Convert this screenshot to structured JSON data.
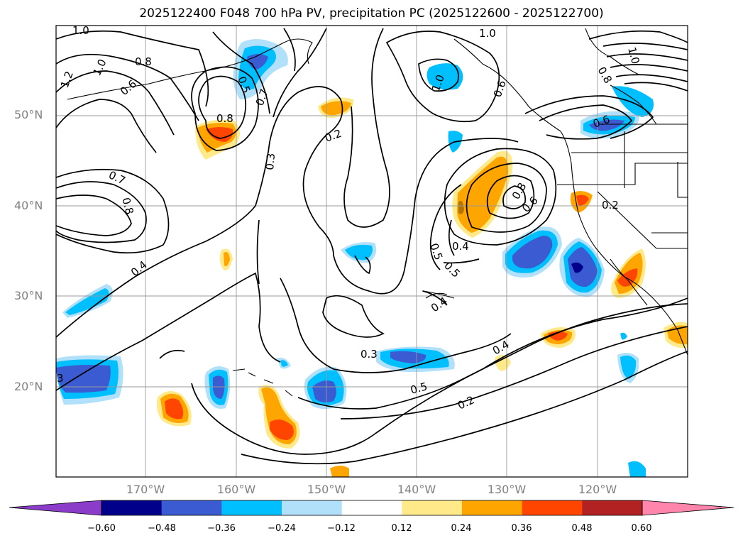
{
  "title": "2025122400 F048 700 hPa PV, precipitation PC (2025122600 - 2025122700)",
  "lat_labels": [
    "50°N",
    "40°N",
    "30°N",
    "20°N"
  ],
  "lon_labels": [
    "170°W",
    "160°W",
    "150°W",
    "140°W",
    "130°W",
    "120°W"
  ],
  "contour_labels": [
    "1.0",
    "1.2",
    "1.0",
    "0.8",
    "0.6",
    "0.7",
    "0.5",
    "0.8",
    "0.3",
    "0.2",
    "1.0",
    "1.0",
    "0.7",
    "0.8",
    "0.4",
    "0.5",
    "0.5",
    "0.4",
    "0.8",
    "0.6",
    "0.6",
    "0.2",
    "0.4",
    "0.3",
    "0.5",
    "0.4",
    "0.2",
    "3",
    "0.6",
    "1.0",
    "0.8"
  ],
  "colorbar": {
    "ticks": [
      "−0.60",
      "−0.48",
      "−0.36",
      "−0.24",
      "−0.12",
      "0.12",
      "0.24",
      "0.36",
      "0.48",
      "0.60"
    ],
    "colors": [
      "#8b3cc8",
      "#00008b",
      "#3a5bd1",
      "#00bfff",
      "#b0e0fa",
      "#ffffff",
      "#ffe989",
      "#ffa500",
      "#ff4500",
      "#b22222",
      "#ff85ac"
    ]
  },
  "colors": {
    "blue_dark": "#00008b",
    "blue_mid": "#3a5bd1",
    "blue": "#00bfff",
    "blue_light": "#b0e0fa",
    "yellow": "#ffe989",
    "orange": "#ffa500",
    "red_orange": "#ff4500"
  }
}
